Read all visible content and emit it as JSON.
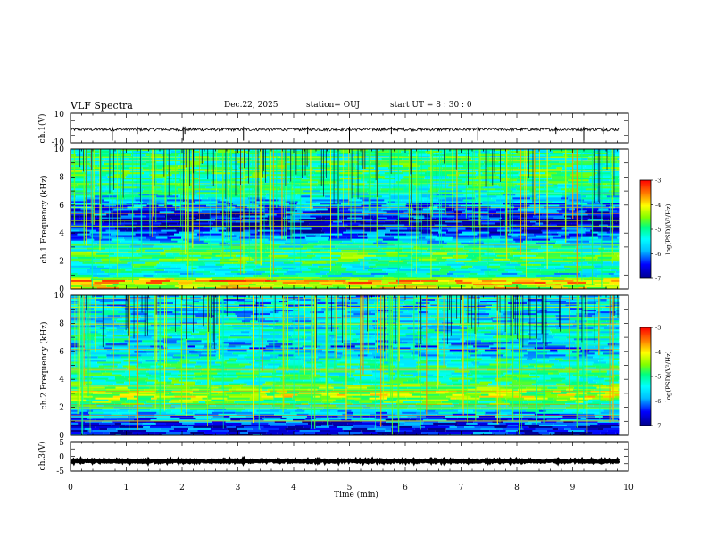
{
  "header": {
    "title": "VLF Spectra",
    "date": "Dec.22, 2025",
    "station": "station= OUJ",
    "start_ut": "start  UT =   8  : 30 : 0"
  },
  "x_axis": {
    "label": "Time  (min)",
    "ticks": [
      "0",
      "1",
      "2",
      "3",
      "4",
      "5",
      "6",
      "7",
      "8",
      "9",
      "10"
    ]
  },
  "chart_data": [
    {
      "type": "line",
      "id": "ch1-waveform",
      "ylabel": "ch.1(V)",
      "ylim": [
        -10,
        10
      ],
      "yticks": [
        "10",
        "-10"
      ],
      "xlim": [
        0,
        10
      ],
      "data_end_min": 9.83,
      "baseline_v": -1.0,
      "noise_amplitude_v": 1.0,
      "spikes_min": [
        0.75,
        1.2,
        2.02,
        2.05,
        3.1,
        4.25,
        5.0,
        5.75,
        7.3,
        8.7,
        9.2,
        9.55
      ]
    },
    {
      "type": "heatmap",
      "id": "ch1-spectrogram",
      "ylabel": "ch.1 Frequency  (kHz)",
      "xlim": [
        0,
        10
      ],
      "ylim": [
        0,
        10
      ],
      "yticks": [
        "0",
        "2",
        "4",
        "6",
        "8",
        "10"
      ],
      "data_end_min": 9.83,
      "colorbar": {
        "label": "log(PSD)(V²/Hz)",
        "ticks": [
          "-3",
          "-4",
          "-5",
          "-6",
          "-7"
        ],
        "range": [
          -7,
          -3
        ]
      },
      "bands": [
        {
          "f_khz": 0.3,
          "level": -4.2
        },
        {
          "f_khz": 0.55,
          "level": -3.6
        },
        {
          "f_khz": 1.0,
          "level": -5.6
        },
        {
          "f_khz": 1.6,
          "level": -5.3
        },
        {
          "f_khz": 2.0,
          "level": -5.0
        },
        {
          "f_khz": 2.3,
          "level": -4.8
        },
        {
          "f_khz": 2.6,
          "level": -5.0
        },
        {
          "f_khz": 3.3,
          "level": -5.6
        },
        {
          "f_khz": 4.5,
          "level": -6.8
        },
        {
          "f_khz": 5.2,
          "level": -6.6
        },
        {
          "f_khz": 6.0,
          "level": -6.0
        },
        {
          "f_khz": 7.2,
          "level": -5.2
        },
        {
          "f_khz": 8.5,
          "level": -5.0
        },
        {
          "f_khz": 9.5,
          "level": -5.2
        }
      ]
    },
    {
      "type": "heatmap",
      "id": "ch2-spectrogram",
      "ylabel": "ch.2 Frequency  (kHz)",
      "xlim": [
        0,
        10
      ],
      "ylim": [
        0,
        10
      ],
      "yticks": [
        "0",
        "2",
        "4",
        "6",
        "8",
        "10"
      ],
      "data_end_min": 9.83,
      "colorbar": {
        "label": "log(PSD)(V²/Hz)",
        "ticks": [
          "-3",
          "-4",
          "-5",
          "-6",
          "-7"
        ],
        "range": [
          -7,
          -3
        ]
      },
      "bands": [
        {
          "f_khz": 0.4,
          "level": -6.6
        },
        {
          "f_khz": 1.0,
          "level": -6.4
        },
        {
          "f_khz": 1.8,
          "level": -5.6
        },
        {
          "f_khz": 2.4,
          "level": -4.8
        },
        {
          "f_khz": 2.8,
          "level": -4.2
        },
        {
          "f_khz": 3.2,
          "level": -4.6
        },
        {
          "f_khz": 3.6,
          "level": -5.0
        },
        {
          "f_khz": 4.3,
          "level": -5.2
        },
        {
          "f_khz": 4.9,
          "level": -5.1
        },
        {
          "f_khz": 5.5,
          "level": -5.5
        },
        {
          "f_khz": 6.3,
          "level": -6.0
        },
        {
          "f_khz": 7.0,
          "level": -5.4
        },
        {
          "f_khz": 8.0,
          "level": -5.6
        },
        {
          "f_khz": 9.2,
          "level": -5.8
        }
      ]
    },
    {
      "type": "line",
      "id": "ch3-waveform",
      "ylabel": "ch.3(V)",
      "ylim": [
        -5,
        5
      ],
      "yticks": [
        "5",
        "0",
        "-5"
      ],
      "xlim": [
        0,
        10
      ],
      "data_end_min": 9.83,
      "baseline_v": -1.6,
      "noise_amplitude_v": 0.3,
      "spikes_min": []
    }
  ],
  "colors": {
    "colormap": [
      "#00008b",
      "#0000ff",
      "#00bfff",
      "#00ffff",
      "#00ff80",
      "#80ff00",
      "#ffff00",
      "#ff8000",
      "#ff0000"
    ],
    "trace": "#000000",
    "frame": "#000000",
    "background": "#ffffff"
  }
}
